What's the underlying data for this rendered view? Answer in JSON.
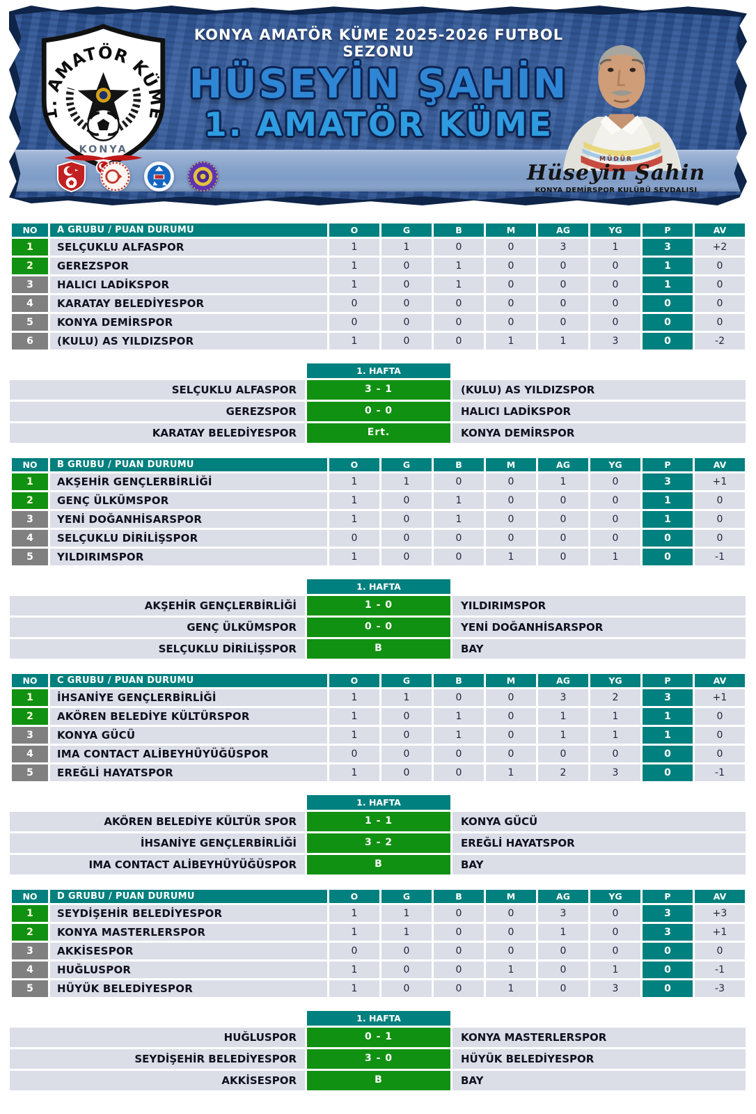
{
  "colors": {
    "teal": "#00807E",
    "green": "#119111",
    "gray": "#808080",
    "row_bg": "#DBDEE7",
    "score_green": "#119111",
    "banner_blue": "#2c5291",
    "band_blue": "#8aa5cc",
    "title_blue": "#2f86d4"
  },
  "banner": {
    "season_title": "KONYA AMATÖR KÜME 2025-2026 FUTBOL SEZONU",
    "person_name": "HÜSEYİN ŞAHİN",
    "league_title": "1. AMATÖR KÜME",
    "emblem": {
      "arc_text": "1. AMATÖR KÜME",
      "city_text": "KONYA"
    },
    "signature": {
      "role": "MÜDÜR",
      "name": "Hüseyin Şahin",
      "subtitle": "KONYA DEMİRSPOR KULÜBÜ SEVDALISI"
    },
    "logos": [
      "tff-logo",
      "ministry-sport-logo",
      "askf-konya-logo",
      "club-crest-logo"
    ]
  },
  "table_headers": {
    "no": "NO",
    "cols": [
      "O",
      "G",
      "B",
      "M",
      "AG",
      "YG",
      "P",
      "AV"
    ]
  },
  "groups": [
    {
      "letter": "a",
      "title": "A GRUBU / PUAN DURUMU",
      "rows": [
        {
          "no": "1",
          "team": "SELÇUKLU ALFASPOR",
          "o": "1",
          "g": "1",
          "b": "0",
          "m": "0",
          "ag": "3",
          "yg": "1",
          "p": "3",
          "av": "+2",
          "highlight": true
        },
        {
          "no": "2",
          "team": "GEREZSPOR",
          "o": "1",
          "g": "0",
          "b": "1",
          "m": "0",
          "ag": "0",
          "yg": "0",
          "p": "1",
          "av": "0",
          "highlight": true
        },
        {
          "no": "3",
          "team": "HALICI LADİKSPOR",
          "o": "1",
          "g": "0",
          "b": "1",
          "m": "0",
          "ag": "0",
          "yg": "0",
          "p": "1",
          "av": "0",
          "highlight": false
        },
        {
          "no": "4",
          "team": "KARATAY BELEDİYESPOR",
          "o": "0",
          "g": "0",
          "b": "0",
          "m": "0",
          "ag": "0",
          "yg": "0",
          "p": "0",
          "av": "0",
          "highlight": false
        },
        {
          "no": "5",
          "team": "KONYA DEMİRSPOR",
          "o": "0",
          "g": "0",
          "b": "0",
          "m": "0",
          "ag": "0",
          "yg": "0",
          "p": "0",
          "av": "0",
          "highlight": false
        },
        {
          "no": "6",
          "team": "(KULU) AS YILDIZSPOR",
          "o": "1",
          "g": "0",
          "b": "0",
          "m": "1",
          "ag": "1",
          "yg": "3",
          "p": "0",
          "av": "-2",
          "highlight": false
        }
      ],
      "week": {
        "title": "1. HAFTA",
        "matches": [
          {
            "home": "SELÇUKLU ALFASPOR",
            "score": "3 - 1",
            "away": "(KULU) AS YILDIZSPOR"
          },
          {
            "home": "GEREZSPOR",
            "score": "0 - 0",
            "away": "HALICI LADİKSPOR"
          },
          {
            "home": "KARATAY BELEDİYESPOR",
            "score": "Ert.",
            "away": "KONYA DEMİRSPOR"
          }
        ]
      }
    },
    {
      "letter": "b",
      "title": "B GRUBU / PUAN DURUMU",
      "rows": [
        {
          "no": "1",
          "team": "AKŞEHİR GENÇLERBİRLİĞİ",
          "o": "1",
          "g": "1",
          "b": "0",
          "m": "0",
          "ag": "1",
          "yg": "0",
          "p": "3",
          "av": "+1",
          "highlight": true
        },
        {
          "no": "2",
          "team": "GENÇ ÜLKÜMSPOR",
          "o": "1",
          "g": "0",
          "b": "1",
          "m": "0",
          "ag": "0",
          "yg": "0",
          "p": "1",
          "av": "0",
          "highlight": true
        },
        {
          "no": "3",
          "team": "YENİ DOĞANHİSARSPOR",
          "o": "1",
          "g": "0",
          "b": "1",
          "m": "0",
          "ag": "0",
          "yg": "0",
          "p": "1",
          "av": "0",
          "highlight": false
        },
        {
          "no": "4",
          "team": "SELÇUKLU DİRİLİŞSPOR",
          "o": "0",
          "g": "0",
          "b": "0",
          "m": "0",
          "ag": "0",
          "yg": "0",
          "p": "0",
          "av": "0",
          "highlight": false
        },
        {
          "no": "5",
          "team": "YILDIRIMSPOR",
          "o": "1",
          "g": "0",
          "b": "0",
          "m": "1",
          "ag": "0",
          "yg": "1",
          "p": "0",
          "av": "-1",
          "highlight": false
        }
      ],
      "week": {
        "title": "1. HAFTA",
        "matches": [
          {
            "home": "AKŞEHİR GENÇLERBİRLİĞİ",
            "score": "1 - 0",
            "away": "YILDIRIMSPOR"
          },
          {
            "home": "GENÇ ÜLKÜMSPOR",
            "score": "0 - 0",
            "away": "YENİ DOĞANHİSARSPOR"
          },
          {
            "home": "SELÇUKLU DİRİLİŞSPOR",
            "score": "B",
            "away": "BAY"
          }
        ]
      }
    },
    {
      "letter": "c",
      "title": "C GRUBU / PUAN DURUMU",
      "rows": [
        {
          "no": "1",
          "team": "İHSANİYE GENÇLERBİRLİĞİ",
          "o": "1",
          "g": "1",
          "b": "0",
          "m": "0",
          "ag": "3",
          "yg": "2",
          "p": "3",
          "av": "+1",
          "highlight": true
        },
        {
          "no": "2",
          "team": "AKÖREN BELEDİYE KÜLTÜRSPOR",
          "o": "1",
          "g": "0",
          "b": "1",
          "m": "0",
          "ag": "1",
          "yg": "1",
          "p": "1",
          "av": "0",
          "highlight": true
        },
        {
          "no": "3",
          "team": "KONYA GÜCÜ",
          "o": "1",
          "g": "0",
          "b": "1",
          "m": "0",
          "ag": "1",
          "yg": "1",
          "p": "1",
          "av": "0",
          "highlight": false
        },
        {
          "no": "4",
          "team": "IMA CONTACT ALİBEYHÜYÜĞÜSPOR",
          "o": "0",
          "g": "0",
          "b": "0",
          "m": "0",
          "ag": "0",
          "yg": "0",
          "p": "0",
          "av": "0",
          "highlight": false
        },
        {
          "no": "5",
          "team": "EREĞLİ HAYATSPOR",
          "o": "1",
          "g": "0",
          "b": "0",
          "m": "1",
          "ag": "2",
          "yg": "3",
          "p": "0",
          "av": "-1",
          "highlight": false
        }
      ],
      "week": {
        "title": "1. HAFTA",
        "matches": [
          {
            "home": "AKÖREN BELEDİYE KÜLTÜR SPOR",
            "score": "1 - 1",
            "away": "KONYA GÜCÜ"
          },
          {
            "home": "İHSANİYE GENÇLERBİRLİĞİ",
            "score": "3 - 2",
            "away": "EREĞLİ HAYATSPOR"
          },
          {
            "home": "IMA CONTACT ALİBEYHÜYÜĞÜSPOR",
            "score": "B",
            "away": "BAY"
          }
        ]
      }
    },
    {
      "letter": "d",
      "title": "D GRUBU / PUAN DURUMU",
      "rows": [
        {
          "no": "1",
          "team": "SEYDİŞEHİR BELEDİYESPOR",
          "o": "1",
          "g": "1",
          "b": "0",
          "m": "0",
          "ag": "3",
          "yg": "0",
          "p": "3",
          "av": "+3",
          "highlight": true
        },
        {
          "no": "2",
          "team": "KONYA MASTERLERSPOR",
          "o": "1",
          "g": "1",
          "b": "0",
          "m": "0",
          "ag": "1",
          "yg": "0",
          "p": "3",
          "av": "+1",
          "highlight": true
        },
        {
          "no": "3",
          "team": "AKKİSESPOR",
          "o": "0",
          "g": "0",
          "b": "0",
          "m": "0",
          "ag": "0",
          "yg": "0",
          "p": "0",
          "av": "0",
          "highlight": false
        },
        {
          "no": "4",
          "team": "HUĞLUSPOR",
          "o": "1",
          "g": "0",
          "b": "0",
          "m": "1",
          "ag": "0",
          "yg": "1",
          "p": "0",
          "av": "-1",
          "highlight": false
        },
        {
          "no": "5",
          "team": "HÜYÜK BELEDİYESPOR",
          "o": "1",
          "g": "0",
          "b": "0",
          "m": "1",
          "ag": "0",
          "yg": "3",
          "p": "0",
          "av": "-3",
          "highlight": false
        }
      ],
      "week": {
        "title": "1. HAFTA",
        "matches": [
          {
            "home": "HUĞLUSPOR",
            "score": "0 - 1",
            "away": "KONYA MASTERLERSPOR"
          },
          {
            "home": "SEYDİŞEHİR BELEDİYESPOR",
            "score": "3 - 0",
            "away": "HÜYÜK BELEDİYESPOR"
          },
          {
            "home": "AKKİSESPOR",
            "score": "B",
            "away": "BAY"
          }
        ]
      }
    }
  ]
}
